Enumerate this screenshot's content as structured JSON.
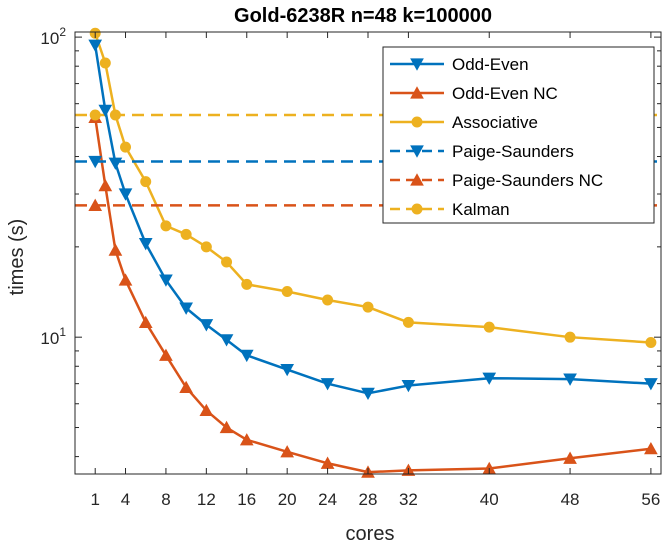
{
  "chart_data": {
    "type": "line",
    "title": "Gold-6238R n=48 k=100000",
    "xlabel": "cores",
    "ylabel": "times (s)",
    "yscale": "log",
    "xlim": [
      -1,
      57
    ],
    "ylim": [
      3.5,
      104
    ],
    "xticks": [
      1,
      4,
      8,
      12,
      16,
      20,
      24,
      28,
      32,
      40,
      48,
      56
    ],
    "yticks": [
      {
        "value": 10,
        "base": "10",
        "exp": "1"
      },
      {
        "value": 100,
        "base": "10",
        "exp": "2"
      }
    ],
    "x": [
      1,
      2,
      3,
      4,
      6,
      8,
      10,
      12,
      14,
      16,
      20,
      24,
      28,
      32,
      40,
      48,
      56
    ],
    "series": [
      {
        "name": "Odd-Even",
        "color": "#0072BD",
        "marker": "triangle-down",
        "style": "solid",
        "values": [
          94,
          57,
          38,
          30,
          20.5,
          15.5,
          12.5,
          11,
          9.8,
          8.7,
          7.8,
          7.0,
          6.5,
          6.9,
          7.3,
          7.25,
          7.0
        ]
      },
      {
        "name": "Odd-Even NC",
        "color": "#D95319",
        "marker": "triangle-up",
        "style": "solid",
        "values": [
          54,
          32,
          19.5,
          15.5,
          11.2,
          8.7,
          6.8,
          5.7,
          5.0,
          4.55,
          4.15,
          3.8,
          3.55,
          3.6,
          3.65,
          3.95,
          4.25
        ]
      },
      {
        "name": "Associative",
        "color": "#EDB120",
        "marker": "circle",
        "style": "solid",
        "values": [
          103,
          82,
          55,
          43,
          33,
          23.5,
          22,
          20,
          17.8,
          15,
          14.2,
          13.3,
          12.6,
          11.2,
          10.8,
          10.0,
          9.6
        ]
      },
      {
        "name": "Paige-Saunders",
        "color": "#0072BD",
        "marker": "triangle-down",
        "style": "dashed",
        "constant": 38.5
      },
      {
        "name": "Paige-Saunders NC",
        "color": "#D95319",
        "marker": "triangle-up",
        "style": "dashed",
        "constant": 27.5
      },
      {
        "name": "Kalman",
        "color": "#EDB120",
        "marker": "circle",
        "style": "dashed",
        "constant": 55
      }
    ],
    "legend_position": "top-right"
  }
}
